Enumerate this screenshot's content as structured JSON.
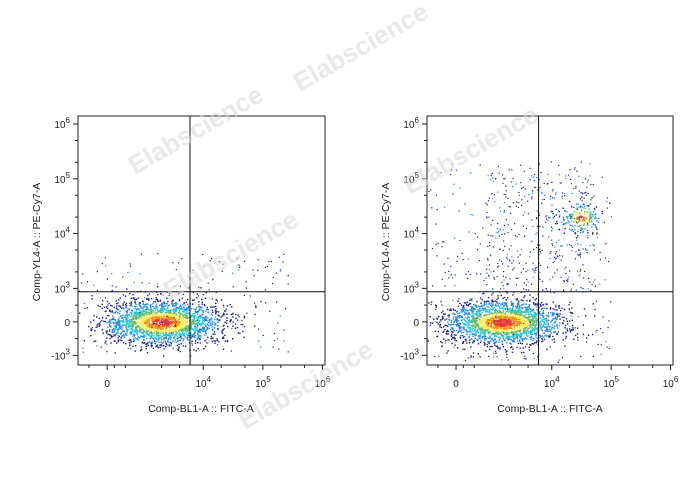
{
  "watermark": "Elabscience",
  "chart_data": [
    {
      "type": "scatter",
      "subtype": "flow-cytometry-density-dot-plot",
      "xlabel": "Comp-BL1-A :: FITC-A",
      "ylabel": "Comp-YL4-A :: PE-Cy7-A",
      "x_scale": "biexponential",
      "y_scale": "biexponential",
      "xticks": [
        "0",
        "10^4",
        "10^5",
        "10^6"
      ],
      "yticks": [
        "10^6",
        "10^5",
        "10^4",
        "10^3",
        "0",
        "-10^3"
      ],
      "gate": {
        "x": 6000,
        "y": 900
      },
      "populations": [
        {
          "name": "double-negative",
          "x_center": 2000,
          "y_center": 0,
          "relative_count": 1.0
        }
      ],
      "density_colors": [
        "#1a237e",
        "#1e88e5",
        "#26c6da",
        "#66bb6a",
        "#ffee58",
        "#fb8c00",
        "#e53935"
      ]
    },
    {
      "type": "scatter",
      "subtype": "flow-cytometry-density-dot-plot",
      "xlabel": "Comp-BL1-A :: FITC-A",
      "ylabel": "Comp-YL4-A :: PE-Cy7-A",
      "x_scale": "biexponential",
      "y_scale": "biexponential",
      "xticks": [
        "0",
        "10^4",
        "10^5",
        "10^6"
      ],
      "yticks": [
        "10^6",
        "10^5",
        "10^4",
        "10^3",
        "0",
        "-10^3"
      ],
      "gate": {
        "x": 6000,
        "y": 900
      },
      "populations": [
        {
          "name": "double-negative",
          "x_center": 1500,
          "y_center": 0,
          "relative_count": 1.0
        },
        {
          "name": "double-positive",
          "x_center": 30000,
          "y_center": 20000,
          "relative_count": 0.08
        }
      ],
      "density_colors": [
        "#1a237e",
        "#1e88e5",
        "#26c6da",
        "#66bb6a",
        "#ffee58",
        "#fb8c00",
        "#e53935"
      ]
    }
  ]
}
